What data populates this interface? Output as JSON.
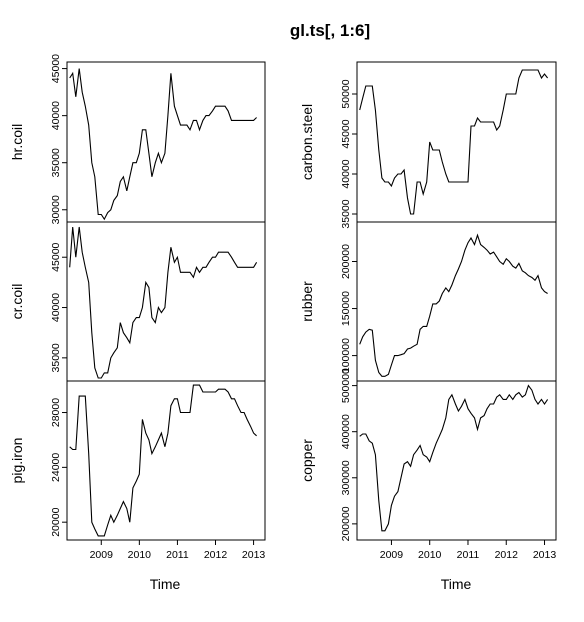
{
  "chart_data": {
    "type": "line",
    "title": "gl.ts[, 1:6]",
    "xlabel": "Time",
    "x_ticks": [
      2009,
      2010,
      2011,
      2012,
      2013
    ],
    "x_range": [
      2008.1,
      2013.3
    ],
    "columns": [
      {
        "panels": [
          {
            "name": "hr.coil",
            "ylim": [
              28700,
              45700
            ],
            "yticks": [
              30000,
              35000,
              40000,
              45000
            ],
            "x": [
              2008.17,
              2008.25,
              2008.33,
              2008.42,
              2008.5,
              2008.58,
              2008.67,
              2008.75,
              2008.83,
              2008.92,
              2009.0,
              2009.08,
              2009.17,
              2009.25,
              2009.33,
              2009.42,
              2009.5,
              2009.58,
              2009.67,
              2009.75,
              2009.83,
              2009.92,
              2010.0,
              2010.08,
              2010.17,
              2010.25,
              2010.33,
              2010.42,
              2010.5,
              2010.58,
              2010.67,
              2010.75,
              2010.83,
              2010.92,
              2011.0,
              2011.08,
              2011.17,
              2011.25,
              2011.33,
              2011.42,
              2011.5,
              2011.58,
              2011.67,
              2011.75,
              2011.83,
              2011.92,
              2012.0,
              2012.08,
              2012.17,
              2012.25,
              2012.33,
              2012.42,
              2012.5,
              2012.58,
              2012.67,
              2012.75,
              2012.83,
              2012.92,
              2013.0,
              2013.08
            ],
            "values": [
              44000,
              44500,
              42000,
              45000,
              42500,
              41000,
              39000,
              35000,
              33500,
              29500,
              29500,
              29000,
              29700,
              30000,
              31000,
              31500,
              33000,
              33500,
              32000,
              33500,
              35000,
              35000,
              36000,
              38500,
              38500,
              36000,
              33500,
              35000,
              36000,
              35000,
              36000,
              40000,
              44500,
              41000,
              40000,
              39000,
              39000,
              39000,
              38500,
              39500,
              39500,
              38500,
              39500,
              40000,
              40000,
              40500,
              41000,
              41000,
              41000,
              41000,
              40500,
              39500,
              39500,
              39500,
              39500,
              39500,
              39500,
              39500,
              39500,
              39800
            ]
          },
          {
            "name": "cr.coil",
            "ylim": [
              32700,
              48500
            ],
            "yticks": [
              35000,
              40000,
              45000
            ],
            "x": [
              2008.17,
              2008.25,
              2008.33,
              2008.42,
              2008.5,
              2008.58,
              2008.67,
              2008.75,
              2008.83,
              2008.92,
              2009.0,
              2009.08,
              2009.17,
              2009.25,
              2009.33,
              2009.42,
              2009.5,
              2009.58,
              2009.67,
              2009.75,
              2009.83,
              2009.92,
              2010.0,
              2010.08,
              2010.17,
              2010.25,
              2010.33,
              2010.42,
              2010.5,
              2010.58,
              2010.67,
              2010.75,
              2010.83,
              2010.92,
              2011.0,
              2011.08,
              2011.17,
              2011.25,
              2011.33,
              2011.42,
              2011.5,
              2011.58,
              2011.67,
              2011.75,
              2011.83,
              2011.92,
              2012.0,
              2012.08,
              2012.17,
              2012.25,
              2012.33,
              2012.42,
              2012.5,
              2012.58,
              2012.67,
              2012.75,
              2012.83,
              2012.92,
              2013.0,
              2013.08
            ],
            "values": [
              44000,
              48000,
              45000,
              48000,
              45500,
              44000,
              42500,
              37500,
              34000,
              33000,
              33000,
              33500,
              33500,
              35000,
              35500,
              36000,
              38500,
              37500,
              37000,
              36500,
              38500,
              39000,
              39000,
              40000,
              42500,
              42000,
              39000,
              38500,
              40000,
              39500,
              40000,
              43500,
              46000,
              44500,
              45000,
              43500,
              43500,
              43500,
              43500,
              43000,
              44000,
              43500,
              44000,
              44000,
              44500,
              45000,
              45000,
              45500,
              45500,
              45500,
              45500,
              45000,
              44500,
              44000,
              44000,
              44000,
              44000,
              44000,
              44000,
              44500
            ]
          },
          {
            "name": "pig.iron",
            "ylim": [
              18700,
              30300
            ],
            "yticks": [
              20000,
              24000,
              28000
            ],
            "x": [
              2008.17,
              2008.25,
              2008.33,
              2008.42,
              2008.5,
              2008.58,
              2008.67,
              2008.75,
              2008.83,
              2008.92,
              2009.0,
              2009.08,
              2009.17,
              2009.25,
              2009.33,
              2009.42,
              2009.5,
              2009.58,
              2009.67,
              2009.75,
              2009.83,
              2009.92,
              2010.0,
              2010.08,
              2010.17,
              2010.25,
              2010.33,
              2010.42,
              2010.5,
              2010.58,
              2010.67,
              2010.75,
              2010.83,
              2010.92,
              2011.0,
              2011.08,
              2011.17,
              2011.25,
              2011.33,
              2011.42,
              2011.5,
              2011.58,
              2011.67,
              2011.75,
              2011.83,
              2011.92,
              2012.0,
              2012.08,
              2012.17,
              2012.25,
              2012.33,
              2012.42,
              2012.5,
              2012.58,
              2012.67,
              2012.75,
              2012.83,
              2012.92,
              2013.0,
              2013.08
            ],
            "values": [
              25500,
              25300,
              25300,
              29200,
              29200,
              29200,
              25000,
              20000,
              19500,
              19000,
              19000,
              19000,
              19800,
              20500,
              20000,
              20500,
              21000,
              21500,
              21000,
              20000,
              22500,
              23000,
              23500,
              27500,
              26500,
              26000,
              25000,
              25500,
              26000,
              26500,
              25500,
              26500,
              28500,
              29000,
              29000,
              28000,
              28000,
              28000,
              28000,
              30000,
              30000,
              30000,
              29500,
              29500,
              29500,
              29500,
              29500,
              29700,
              29700,
              29700,
              29500,
              29000,
              29000,
              28500,
              28000,
              28000,
              27500,
              27000,
              26500,
              26300
            ]
          }
        ]
      },
      {
        "panels": [
          {
            "name": "carbon.steel",
            "ylim": [
              34000,
              54000
            ],
            "yticks": [
              35000,
              40000,
              45000,
              50000
            ],
            "x": [
              2008.17,
              2008.25,
              2008.33,
              2008.42,
              2008.5,
              2008.58,
              2008.67,
              2008.75,
              2008.83,
              2008.92,
              2009.0,
              2009.08,
              2009.17,
              2009.25,
              2009.33,
              2009.42,
              2009.5,
              2009.58,
              2009.67,
              2009.75,
              2009.83,
              2009.92,
              2010.0,
              2010.08,
              2010.17,
              2010.25,
              2010.33,
              2010.42,
              2010.5,
              2010.58,
              2010.67,
              2010.75,
              2010.83,
              2010.92,
              2011.0,
              2011.08,
              2011.17,
              2011.25,
              2011.33,
              2011.42,
              2011.5,
              2011.58,
              2011.67,
              2011.75,
              2011.83,
              2011.92,
              2012.0,
              2012.08,
              2012.17,
              2012.25,
              2012.33,
              2012.42,
              2012.5,
              2012.58,
              2012.67,
              2012.75,
              2012.83,
              2012.92,
              2013.0,
              2013.08
            ],
            "values": [
              48000,
              49500,
              51000,
              51000,
              51000,
              48000,
              43000,
              39500,
              39000,
              39000,
              38500,
              39500,
              40000,
              40000,
              40500,
              37000,
              35000,
              35000,
              39000,
              39000,
              37500,
              39000,
              44000,
              43000,
              43000,
              43000,
              41500,
              40000,
              39000,
              39000,
              39000,
              39000,
              39000,
              39000,
              39000,
              46000,
              46000,
              47000,
              46500,
              46500,
              46500,
              46500,
              46500,
              45500,
              46000,
              48000,
              50000,
              50000,
              50000,
              50000,
              52000,
              53000,
              53000,
              53000,
              53000,
              53000,
              53000,
              52000,
              52500,
              52000
            ]
          },
          {
            "name": "rubber",
            "ylim": [
              73000,
              242000
            ],
            "yticks": [
              100000,
              150000,
              200000
            ],
            "x": [
              2008.17,
              2008.25,
              2008.33,
              2008.42,
              2008.5,
              2008.58,
              2008.67,
              2008.75,
              2008.83,
              2008.92,
              2009.0,
              2009.08,
              2009.17,
              2009.25,
              2009.33,
              2009.42,
              2009.5,
              2009.58,
              2009.67,
              2009.75,
              2009.83,
              2009.92,
              2010.0,
              2010.08,
              2010.17,
              2010.25,
              2010.33,
              2010.42,
              2010.5,
              2010.58,
              2010.67,
              2010.75,
              2010.83,
              2010.92,
              2011.0,
              2011.08,
              2011.17,
              2011.25,
              2011.33,
              2011.42,
              2011.5,
              2011.58,
              2011.67,
              2011.75,
              2011.83,
              2011.92,
              2012.0,
              2012.08,
              2012.17,
              2012.25,
              2012.33,
              2012.42,
              2012.5,
              2012.58,
              2012.67,
              2012.75,
              2012.83,
              2012.92,
              2013.0,
              2013.08
            ],
            "values": [
              112000,
              120000,
              125000,
              128000,
              127000,
              95000,
              82000,
              78000,
              78000,
              80000,
              90000,
              100000,
              100000,
              101000,
              102000,
              107000,
              108000,
              110000,
              112000,
              128000,
              131000,
              131000,
              142000,
              155000,
              155000,
              158000,
              166000,
              172000,
              168000,
              175000,
              185000,
              192000,
              200000,
              212000,
              220000,
              225000,
              218000,
              228000,
              218000,
              215000,
              212000,
              208000,
              210000,
              205000,
              200000,
              197000,
              203000,
              200000,
              195000,
              193000,
              198000,
              190000,
              188000,
              185000,
              183000,
              180000,
              185000,
              172000,
              168000,
              166000
            ]
          },
          {
            "name": "copper",
            "ylim": [
              165000,
              510000
            ],
            "yticks": [
              200000,
              300000,
              400000,
              500000
            ],
            "x": [
              2008.17,
              2008.25,
              2008.33,
              2008.42,
              2008.5,
              2008.58,
              2008.67,
              2008.75,
              2008.83,
              2008.92,
              2009.0,
              2009.08,
              2009.17,
              2009.25,
              2009.33,
              2009.42,
              2009.5,
              2009.58,
              2009.67,
              2009.75,
              2009.83,
              2009.92,
              2010.0,
              2010.08,
              2010.17,
              2010.25,
              2010.33,
              2010.42,
              2010.5,
              2010.58,
              2010.67,
              2010.75,
              2010.83,
              2010.92,
              2011.0,
              2011.08,
              2011.17,
              2011.25,
              2011.33,
              2011.42,
              2011.5,
              2011.58,
              2011.67,
              2011.75,
              2011.83,
              2011.92,
              2012.0,
              2012.08,
              2012.17,
              2012.25,
              2012.33,
              2012.42,
              2012.5,
              2012.58,
              2012.67,
              2012.75,
              2012.83,
              2012.92,
              2013.0,
              2013.08
            ],
            "values": [
              390000,
              395000,
              395000,
              380000,
              375000,
              350000,
              250000,
              185000,
              185000,
              200000,
              240000,
              260000,
              270000,
              300000,
              330000,
              335000,
              325000,
              350000,
              360000,
              370000,
              350000,
              345000,
              335000,
              355000,
              375000,
              390000,
              405000,
              430000,
              470000,
              480000,
              460000,
              445000,
              455000,
              470000,
              450000,
              440000,
              430000,
              405000,
              430000,
              435000,
              450000,
              460000,
              460000,
              475000,
              480000,
              470000,
              470000,
              480000,
              470000,
              480000,
              485000,
              475000,
              480000,
              500000,
              490000,
              470000,
              460000,
              470000,
              460000,
              470000
            ]
          }
        ]
      }
    ]
  }
}
